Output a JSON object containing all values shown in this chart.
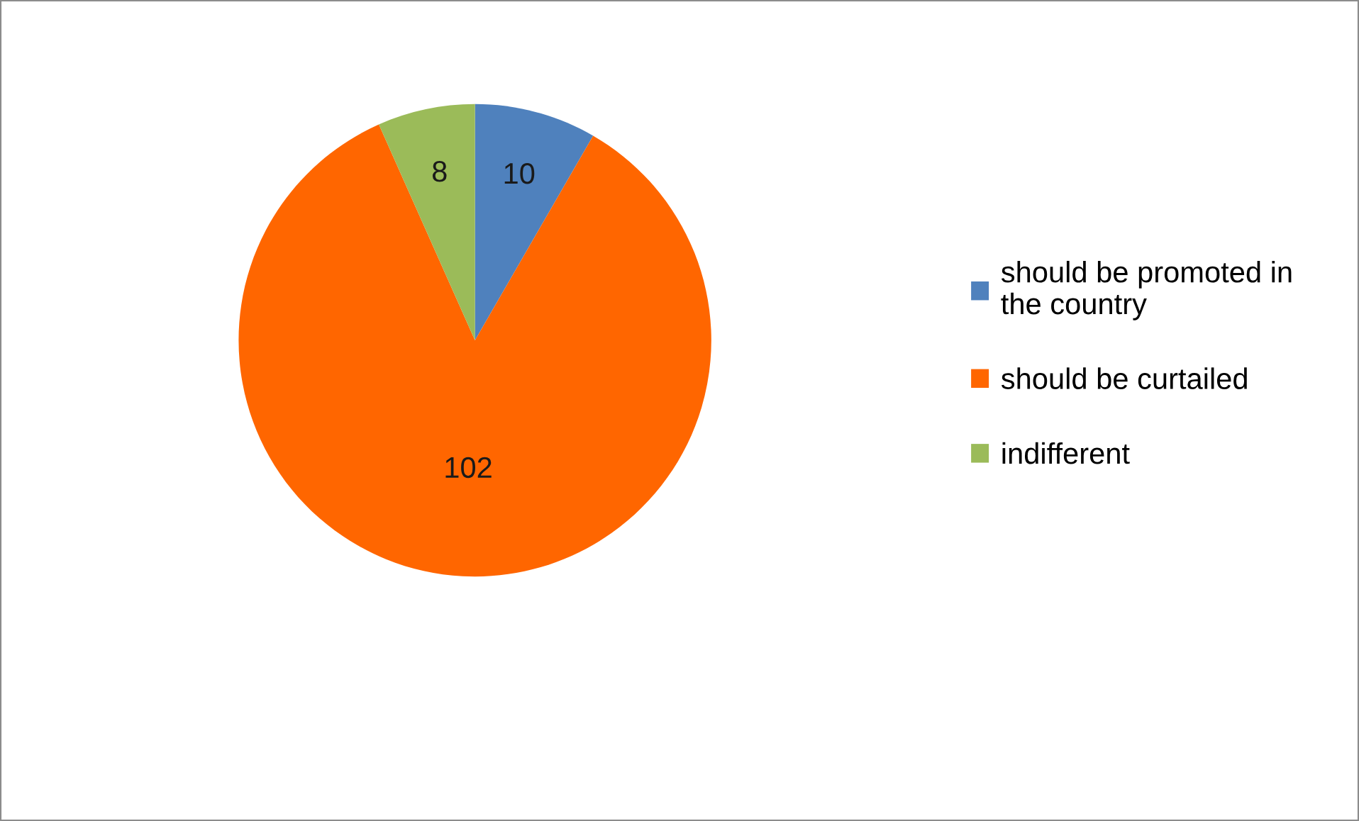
{
  "chart_data": {
    "type": "pie",
    "categories": [
      "should be promoted in the country",
      "should be curtailed",
      "indifferent"
    ],
    "values": [
      10,
      102,
      8
    ],
    "colors": [
      "#4f81bd",
      "#ff6600",
      "#9bbb59"
    ],
    "data_labels": true,
    "legend": "right"
  }
}
